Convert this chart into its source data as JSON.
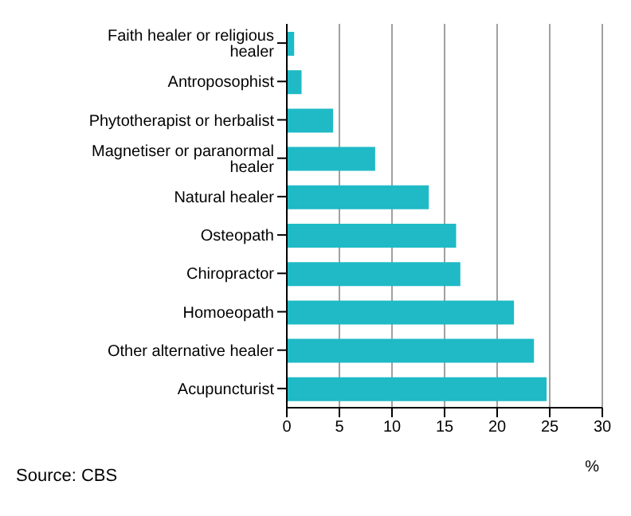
{
  "chart_data": {
    "type": "bar",
    "orientation": "horizontal",
    "categories": [
      "Faith healer or religious healer",
      "Antroposophist",
      "Phytotherapist or herbalist",
      "Magnetiser or paranormal healer",
      "Natural healer",
      "Osteopath",
      "Chiropractor",
      "Homoeopath",
      "Other alternative healer",
      "Acupuncturist"
    ],
    "values": [
      0.7,
      1.4,
      4.4,
      8.4,
      13.5,
      16.1,
      16.5,
      21.6,
      23.5,
      24.7
    ],
    "color": "#1fbac6",
    "xlim": [
      0,
      30
    ],
    "xticks": [
      0,
      5,
      10,
      15,
      20,
      25,
      30
    ],
    "xlabel": "%",
    "grid": "x",
    "annotations": [
      "Source: CBS"
    ]
  }
}
